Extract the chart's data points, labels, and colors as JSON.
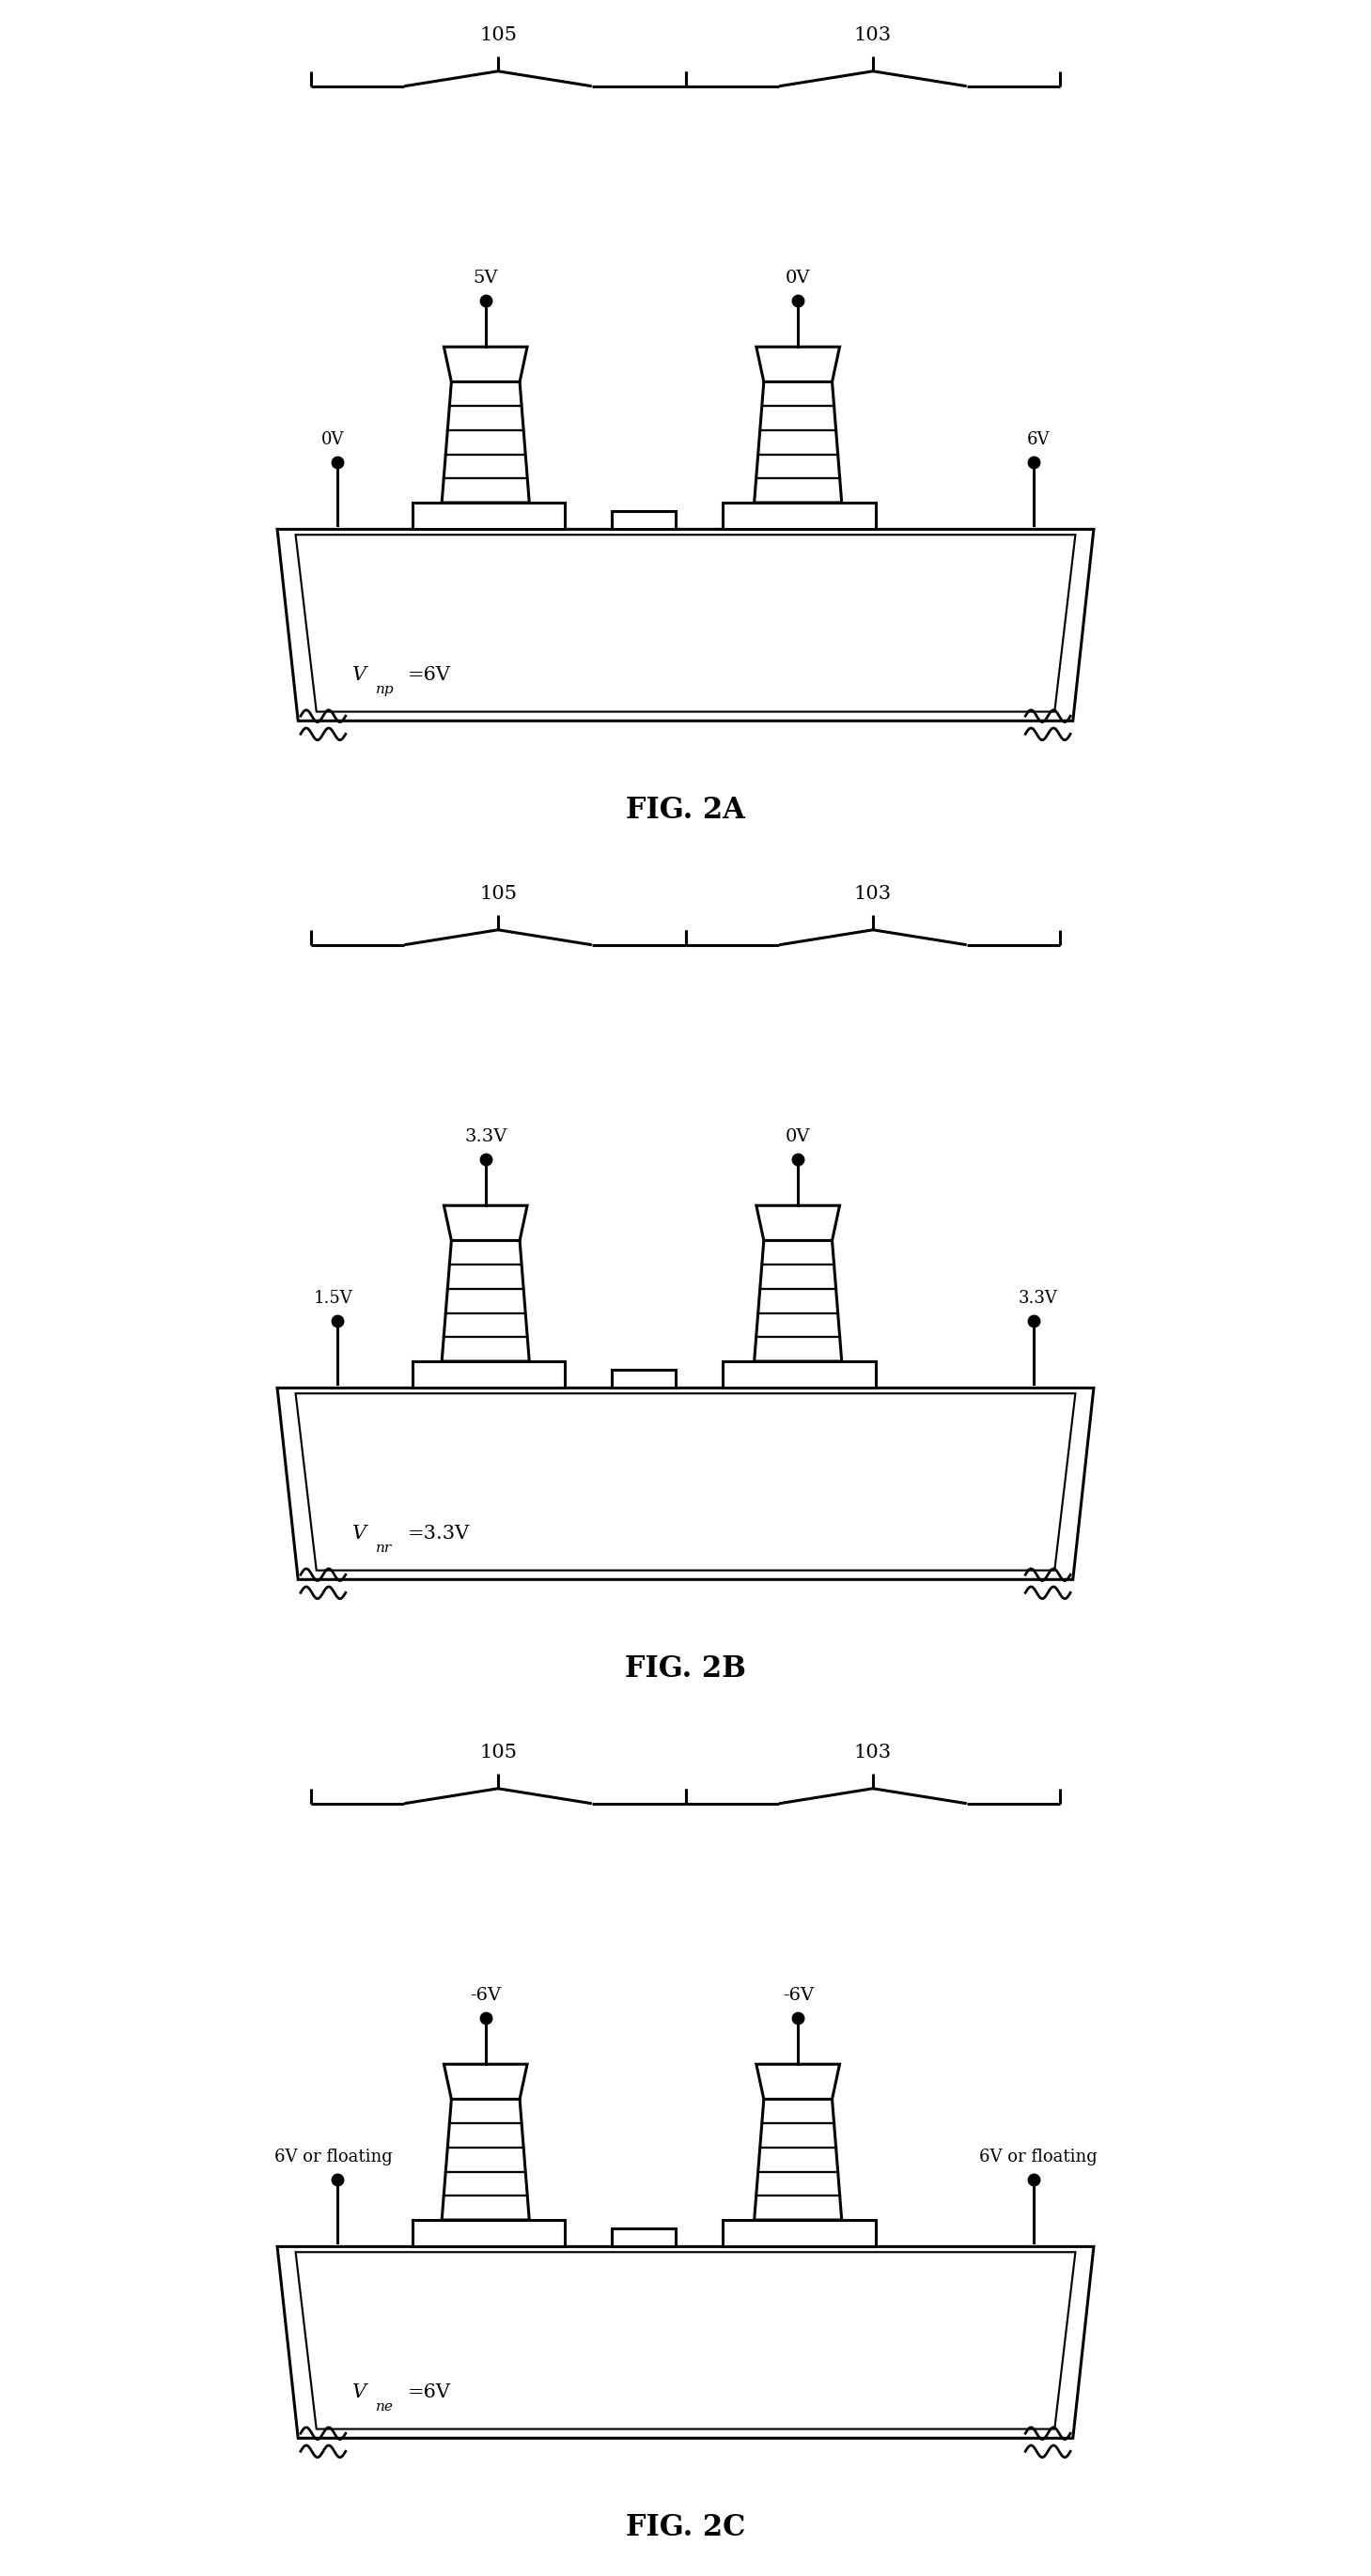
{
  "fig_width": 14.59,
  "fig_height": 27.42,
  "background_color": "#ffffff",
  "line_color": "#000000",
  "line_width": 2.2,
  "panels": [
    {
      "fig_label": "FIG. 2A",
      "label_105": "105",
      "label_103": "103",
      "gate1_voltage": "5V",
      "gate2_voltage": "0V",
      "left_voltage": "0V",
      "right_voltage": "6V",
      "substrate_voltage_pre": "V",
      "substrate_voltage_sub": "np",
      "substrate_voltage_post": "=6V"
    },
    {
      "fig_label": "FIG. 2B",
      "label_105": "105",
      "label_103": "103",
      "gate1_voltage": "3.3V",
      "gate2_voltage": "0V",
      "left_voltage": "1.5V",
      "right_voltage": "3.3V",
      "substrate_voltage_pre": "V",
      "substrate_voltage_sub": "nr",
      "substrate_voltage_post": "=3.3V"
    },
    {
      "fig_label": "FIG. 2C",
      "label_105": "105",
      "label_103": "103",
      "gate1_voltage": "-6V",
      "gate2_voltage": "-6V",
      "left_voltage": "6V or floating",
      "right_voltage": "6V or floating",
      "substrate_voltage_pre": "V",
      "substrate_voltage_sub": "ne",
      "substrate_voltage_post": "=6V"
    }
  ]
}
